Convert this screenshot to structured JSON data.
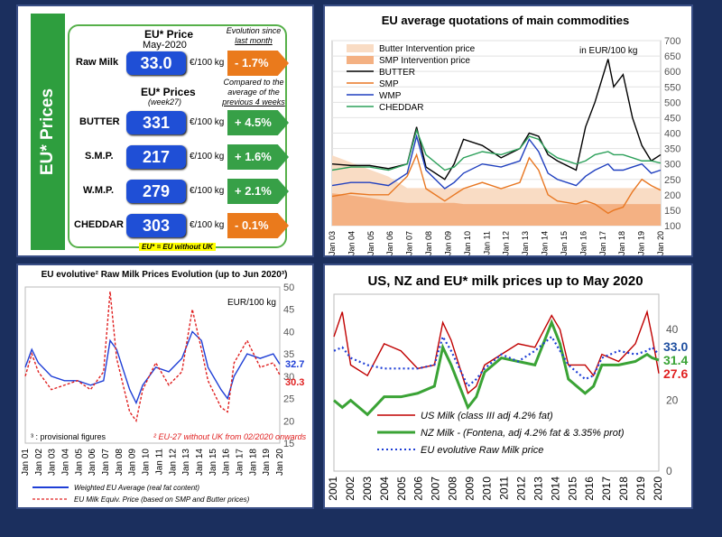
{
  "prices_panel": {
    "side_title": "EU* Prices",
    "price_header": "EU* Price",
    "price_date": "May-2020",
    "evolution_header_line1": "Evolution since",
    "evolution_header_line2": "last month",
    "raw_milk": {
      "label": "Raw Milk",
      "value": "33.0",
      "unit": "€/100 kg",
      "change": "- 1.7%",
      "direction": "down"
    },
    "prices_header": "EU* Prices",
    "prices_week": "(week27)",
    "compare_line1": "Compared to the",
    "compare_line2": "average of the",
    "compare_line3": "previous 4 weeks",
    "products": [
      {
        "label": "BUTTER",
        "value": "331",
        "unit": "€/100 kg",
        "change": "+ 4.5%",
        "direction": "up"
      },
      {
        "label": "S.M.P.",
        "value": "217",
        "unit": "€/100 kg",
        "change": "+ 1.6%",
        "direction": "up"
      },
      {
        "label": "W.M.P.",
        "value": "279",
        "unit": "€/100 kg",
        "change": "+ 2.1%",
        "direction": "up"
      },
      {
        "label": "CHEDDAR",
        "value": "303",
        "unit": "€/100 kg",
        "change": "- 0.1%",
        "direction": "down"
      }
    ],
    "footnote": "EU* = EU without UK",
    "colors": {
      "up": "#37a047",
      "down": "#ea7a1c",
      "pill": "#1f4fd6",
      "side": "#2e9e3e"
    }
  },
  "chart_data": [
    {
      "type": "area",
      "title": "EU average quotations of main commodities",
      "unit_label": "in EUR/100 kg",
      "ylim": [
        100,
        700
      ],
      "y_ticks": [
        100,
        150,
        200,
        250,
        300,
        350,
        400,
        450,
        500,
        550,
        600,
        650,
        700
      ],
      "x_ticks": [
        "Jan 03",
        "Jan 04",
        "Jan 05",
        "Jan 06",
        "Jan 07",
        "Jan 08",
        "Jan 09",
        "Jan 10",
        "Jan 11",
        "Jan 12",
        "Jan 13",
        "Jan 14",
        "Jan 15",
        "Jan 16",
        "Jan 17",
        "Jan 18",
        "Jan 19",
        "Jan 20"
      ],
      "x": [
        2003,
        2004,
        2005,
        2006,
        2007,
        2007.5,
        2008,
        2009,
        2009.5,
        2010,
        2011,
        2012,
        2013,
        2013.5,
        2014,
        2014.5,
        2015,
        2016,
        2016.5,
        2017,
        2017.7,
        2018,
        2018.5,
        2019,
        2019.5,
        2020,
        2020.5
      ],
      "series": [
        {
          "name": "Butter Intervention price",
          "style": "band",
          "color": "#f9dcc4",
          "values": [
            328,
            305,
            282,
            259,
            222,
            222,
            222,
            222,
            222,
            222,
            222,
            222,
            222,
            222,
            222,
            222,
            222,
            222,
            222,
            222,
            222,
            222,
            222,
            222,
            222,
            222,
            222
          ]
        },
        {
          "name": "SMP Intervention price",
          "style": "band",
          "color": "#f4b183",
          "values": [
            205,
            198,
            190,
            180,
            174,
            174,
            174,
            174,
            174,
            170,
            170,
            170,
            170,
            170,
            170,
            170,
            170,
            170,
            170,
            170,
            170,
            170,
            170,
            170,
            170,
            170,
            170
          ]
        },
        {
          "name": "BUTTER",
          "color": "#000000",
          "values": [
            300,
            295,
            295,
            285,
            300,
            420,
            290,
            250,
            300,
            380,
            360,
            320,
            350,
            400,
            390,
            330,
            310,
            280,
            420,
            500,
            640,
            550,
            590,
            450,
            360,
            310,
            330
          ]
        },
        {
          "name": "SMP",
          "color": "#e87722",
          "values": [
            195,
            205,
            200,
            200,
            260,
            330,
            220,
            180,
            200,
            220,
            240,
            220,
            240,
            320,
            280,
            200,
            180,
            170,
            180,
            170,
            140,
            150,
            160,
            210,
            250,
            230,
            215
          ]
        },
        {
          "name": "WMP",
          "color": "#1f3fbf",
          "values": [
            230,
            240,
            240,
            230,
            270,
            390,
            280,
            220,
            240,
            270,
            300,
            290,
            310,
            380,
            340,
            270,
            250,
            230,
            260,
            280,
            300,
            280,
            280,
            290,
            300,
            270,
            280
          ]
        },
        {
          "name": "CHEDDAR",
          "color": "#2ca05a",
          "values": [
            280,
            290,
            290,
            280,
            300,
            410,
            330,
            280,
            290,
            320,
            340,
            330,
            350,
            390,
            380,
            340,
            320,
            300,
            310,
            330,
            340,
            330,
            330,
            320,
            310,
            310,
            303
          ]
        }
      ]
    },
    {
      "type": "line",
      "title": "EU evolutive² Raw Milk Prices Evolution (up to Jun 2020³)",
      "unit_label": "EUR/100 kg",
      "ylim": [
        15,
        50
      ],
      "y_ticks": [
        15,
        20,
        25,
        30,
        35,
        40,
        45,
        50
      ],
      "x_ticks": [
        "Jan 01",
        "Jan 02",
        "Jan 03",
        "Jan 04",
        "Jan 05",
        "Jan 06",
        "Jan 07",
        "Jan 08",
        "Jan 09",
        "Jan 10",
        "Jan 11",
        "Jan 12",
        "Jan 13",
        "Jan 14",
        "Jan 15",
        "Jan 16",
        "Jan 17",
        "Jan 18",
        "Jan 19",
        "Jan 20"
      ],
      "x": [
        2001,
        2001.5,
        2002,
        2003,
        2004,
        2005,
        2006,
        2007,
        2007.5,
        2008,
        2009,
        2009.5,
        2010,
        2011,
        2012,
        2013,
        2013.8,
        2014.5,
        2015,
        2016,
        2016.5,
        2017,
        2018,
        2019,
        2020,
        2020.5
      ],
      "series": [
        {
          "name": "Weighted EU Average (real fat content)",
          "color": "#1f3fd6",
          "values": [
            32,
            36,
            33,
            30,
            29,
            29,
            28,
            29,
            38,
            36,
            27,
            24,
            28,
            32,
            31,
            34,
            40,
            38,
            32,
            27,
            25,
            30,
            35,
            34,
            35,
            32.7
          ]
        },
        {
          "name": "EU Milk Equiv. Price (based on SMP and Butter prices)",
          "color": "#e02020",
          "style": "dashed",
          "values": [
            30,
            35,
            31,
            27,
            28,
            29,
            27,
            31,
            49,
            34,
            22,
            20,
            27,
            33,
            28,
            31,
            45,
            36,
            29,
            23,
            22,
            33,
            38,
            32,
            33,
            30.3
          ]
        }
      ],
      "end_labels": [
        {
          "text": "32.7",
          "color": "#1f3fd6"
        },
        {
          "text": "30.3",
          "color": "#e02020"
        }
      ],
      "notes": [
        "³ : provisional figures",
        "² EU-27 without UK from 02/2020 onwards"
      ]
    },
    {
      "type": "line",
      "title": "US, NZ and EU* milk prices up to May 2020",
      "ylim": [
        0,
        50
      ],
      "y_ticks": [
        0,
        20,
        40
      ],
      "x_ticks": [
        "2001",
        "2002",
        "2003",
        "2004",
        "2005",
        "2006",
        "2007",
        "2008",
        "2009",
        "2010",
        "2011",
        "2012",
        "2013",
        "2014",
        "2015",
        "2016",
        "2017",
        "2018",
        "2019",
        "2020"
      ],
      "x": [
        2001,
        2001.5,
        2002,
        2003,
        2004,
        2005,
        2006,
        2007,
        2007.5,
        2008,
        2009,
        2009.5,
        2010,
        2011,
        2012,
        2013,
        2014,
        2014.5,
        2015,
        2016,
        2016.5,
        2017,
        2018,
        2019,
        2019.7,
        2020,
        2020.4
      ],
      "series": [
        {
          "name": "US Milk (class III adj 4.2% fat)",
          "color": "#c00000",
          "values": [
            38,
            45,
            30,
            27,
            36,
            34,
            29,
            30,
            42,
            37,
            22,
            24,
            30,
            33,
            36,
            35,
            44,
            40,
            30,
            30,
            27,
            33,
            31,
            36,
            45,
            38,
            27.6
          ]
        },
        {
          "name": "NZ Milk - (Fontena, adj 4.2% fat & 3.35% prot)",
          "color": "#3aa335",
          "style": "thick",
          "values": [
            20,
            18,
            20,
            16,
            21,
            21,
            22,
            24,
            35,
            30,
            18,
            21,
            28,
            32,
            31,
            30,
            42,
            36,
            26,
            22,
            24,
            30,
            30,
            31,
            33,
            32,
            31.4
          ]
        },
        {
          "name": "EU evolutive Raw Milk price",
          "color": "#1f3fd6",
          "style": "dotted",
          "values": [
            34,
            35,
            32,
            30,
            29,
            29,
            29,
            30,
            38,
            34,
            24,
            26,
            29,
            33,
            31,
            34,
            38,
            34,
            30,
            26,
            27,
            32,
            34,
            33,
            34,
            35,
            33.0
          ]
        }
      ],
      "end_labels": [
        {
          "text": "33.0",
          "color": "#1f4fa0"
        },
        {
          "text": "31.4",
          "color": "#3aa335"
        },
        {
          "text": "27.6",
          "color": "#e02020"
        }
      ]
    }
  ]
}
